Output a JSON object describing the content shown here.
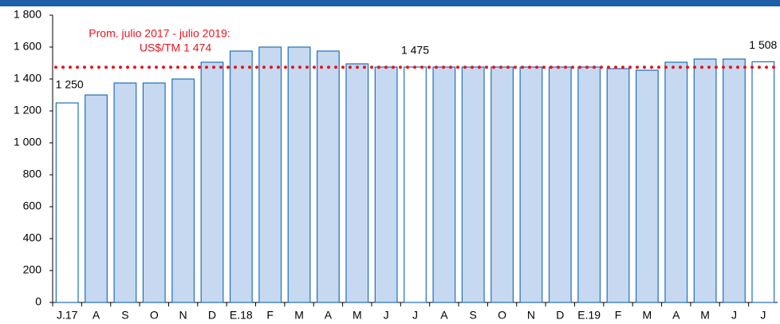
{
  "chart_data": {
    "type": "bar",
    "categories": [
      "J.17",
      "A",
      "S",
      "O",
      "N",
      "D",
      "E.18",
      "F",
      "M",
      "A",
      "M",
      "J",
      "J",
      "A",
      "S",
      "O",
      "N",
      "D",
      "E.19",
      "F",
      "M",
      "A",
      "M",
      "J",
      "J"
    ],
    "values": [
      1250,
      1300,
      1375,
      1375,
      1400,
      1505,
      1575,
      1600,
      1600,
      1575,
      1495,
      1475,
      1475,
      1475,
      1475,
      1475,
      1475,
      1475,
      1475,
      1465,
      1455,
      1505,
      1525,
      1525,
      1508
    ],
    "value_labels": [
      "1 250",
      null,
      null,
      null,
      null,
      null,
      null,
      null,
      null,
      null,
      null,
      null,
      "1 475",
      null,
      null,
      null,
      null,
      null,
      null,
      null,
      null,
      null,
      null,
      null,
      "1 508"
    ],
    "colors": [
      "#ffffff",
      "#c6d9f0",
      "#c6d9f0",
      "#c6d9f0",
      "#c6d9f0",
      "#c6d9f0",
      "#c6d9f0",
      "#c6d9f0",
      "#c6d9f0",
      "#c6d9f0",
      "#c6d9f0",
      "#c6d9f0",
      "#ffffff",
      "#c6d9f0",
      "#c6d9f0",
      "#c6d9f0",
      "#c6d9f0",
      "#c6d9f0",
      "#c6d9f0",
      "#c6d9f0",
      "#c6d9f0",
      "#c6d9f0",
      "#c6d9f0",
      "#c6d9f0",
      "#ffffff"
    ],
    "edge_color": "#1f6fbf",
    "ylim": [
      0,
      1800
    ],
    "yticks": [
      0,
      200,
      400,
      600,
      800,
      {
        "value": 1000,
        "label": "1 000"
      },
      {
        "value": 1200,
        "label": "1 200"
      },
      {
        "value": 1400,
        "label": "1 400"
      },
      {
        "value": 1600,
        "label": "1 600"
      },
      {
        "value": 1800,
        "label": "1 800"
      }
    ],
    "reference_line": {
      "value": 1474,
      "color": "#e8141e"
    },
    "annotation": [
      "Prom. julio 2017 - julio 2019:",
      "US$/TM 1 474"
    ]
  }
}
